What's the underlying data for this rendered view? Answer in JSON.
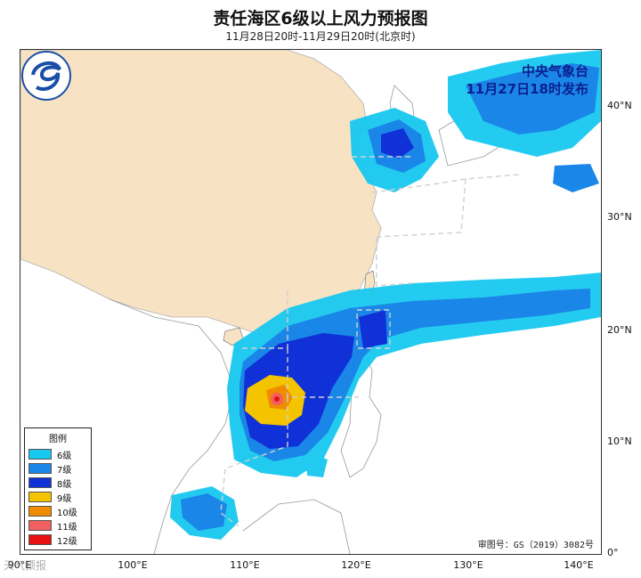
{
  "header": {
    "title": "责任海区6级以上风力预报图",
    "subtitle": "11月28日20时-11月29日20时(北京时)"
  },
  "issuer": {
    "line1": "中央气象台",
    "line2": "11月27日18时发布"
  },
  "approval": "审图号：GS（2019）3082号",
  "watermark": "天气预报",
  "latitude_labels": [
    "40°N",
    "30°N",
    "20°N",
    "10°N",
    "0°"
  ],
  "longitude_labels": [
    "90°E",
    "100°E",
    "110°E",
    "120°E",
    "130°E",
    "140°E"
  ],
  "legend": {
    "title": "图例",
    "items": [
      {
        "label": "6级",
        "color": "#18c8f0"
      },
      {
        "label": "7级",
        "color": "#1a86e8"
      },
      {
        "label": "8级",
        "color": "#1030d8"
      },
      {
        "label": "9级",
        "color": "#f5c400"
      },
      {
        "label": "10级",
        "color": "#f08c00"
      },
      {
        "label": "11级",
        "color": "#f06060"
      },
      {
        "label": "12级",
        "color": "#e81010"
      }
    ]
  },
  "colors": {
    "land_china": "#f7e3c4",
    "land_other": "#ffffff",
    "sea": "#ffffff",
    "boundary_dash": "#cfcfcf"
  }
}
